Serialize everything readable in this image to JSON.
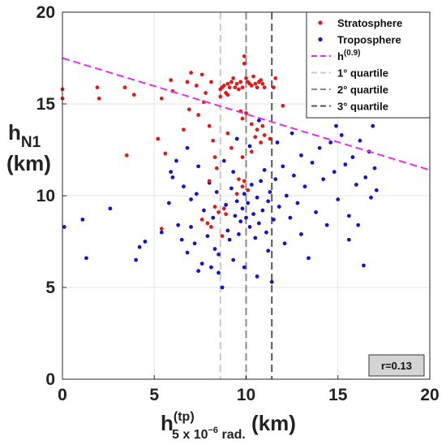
{
  "chart_data": {
    "type": "scatter",
    "xlim": [
      0,
      20
    ],
    "ylim": [
      0,
      20
    ],
    "xticks": [
      "0",
      "5",
      "10",
      "15",
      "20"
    ],
    "yticks": [
      "0",
      "5",
      "10",
      "15",
      "20"
    ],
    "ylabel": {
      "main": "h",
      "sub": "N1",
      "unit": "(km)"
    },
    "xlabel": {
      "main": "h",
      "sup": "(tp)",
      "sub": "5 x 10",
      "sub_sup": "−6",
      "sub_end": " rad.",
      "unit": " (km)"
    },
    "grid": true,
    "legend_position": "top-right",
    "legend": [
      {
        "label": "Stratosphere",
        "sup": "",
        "kind": "dot",
        "color": "#e01b1b"
      },
      {
        "label": "Troposphere",
        "sup": "",
        "kind": "dot",
        "color": "#1414cc"
      },
      {
        "label": "h",
        "sup": "(0.9)",
        "kind": "dash",
        "color": "#e62ee6"
      },
      {
        "label": "1° quartile",
        "sup": "",
        "kind": "dash",
        "color": "#c8c8c8"
      },
      {
        "label": "2° quartile",
        "sup": "",
        "kind": "dash",
        "color": "#8a8a8a"
      },
      {
        "label": "3° quartile",
        "sup": "",
        "kind": "dash",
        "color": "#555555"
      }
    ],
    "annotation": "r=0.13",
    "quantile_line": {
      "name": "h",
      "sup": "(0.9)",
      "x": [
        0,
        20
      ],
      "y": [
        17.5,
        11.4
      ],
      "color": "#e62ee6"
    },
    "quartiles": [
      {
        "name": "1° quartile",
        "x": 8.6,
        "color": "#c8c8c8"
      },
      {
        "name": "2° quartile",
        "x": 10.0,
        "color": "#8a8a8a"
      },
      {
        "name": "3° quartile",
        "x": 11.4,
        "color": "#555555"
      }
    ],
    "series": [
      {
        "name": "Stratosphere",
        "color": "#e01b1b",
        "points": [
          [
            0.0,
            15.8
          ],
          [
            0.0,
            15.3
          ],
          [
            1.9,
            15.9
          ],
          [
            2.0,
            15.3
          ],
          [
            3.4,
            15.9
          ],
          [
            3.9,
            15.5
          ],
          [
            3.5,
            12.2
          ],
          [
            5.4,
            15.3
          ],
          [
            5.2,
            13.1
          ],
          [
            5.9,
            16.3
          ],
          [
            6.0,
            15.7
          ],
          [
            5.6,
            12.3
          ],
          [
            6.8,
            16.2
          ],
          [
            7.0,
            16.7
          ],
          [
            7.3,
            16.0
          ],
          [
            7.6,
            16.6
          ],
          [
            7.8,
            15.6
          ],
          [
            8.1,
            16.2
          ],
          [
            6.9,
            14.7
          ],
          [
            7.4,
            14.4
          ],
          [
            6.6,
            13.6
          ],
          [
            8.0,
            13.8
          ],
          [
            8.2,
            13.0
          ],
          [
            8.3,
            12.1
          ],
          [
            8.4,
            11.5
          ],
          [
            8.0,
            10.8
          ],
          [
            8.6,
            15.8
          ],
          [
            8.6,
            15.4
          ],
          [
            8.7,
            15.9
          ],
          [
            8.8,
            16.0
          ],
          [
            8.9,
            15.6
          ],
          [
            9.0,
            16.1
          ],
          [
            9.0,
            15.5
          ],
          [
            9.1,
            15.9
          ],
          [
            9.2,
            16.2
          ],
          [
            9.3,
            16.4
          ],
          [
            9.4,
            15.9
          ],
          [
            9.5,
            16.1
          ],
          [
            9.6,
            15.8
          ],
          [
            9.7,
            16.2
          ],
          [
            9.8,
            15.9
          ],
          [
            9.9,
            17.6
          ],
          [
            9.9,
            17.2
          ],
          [
            10.0,
            16.4
          ],
          [
            10.1,
            16.2
          ],
          [
            10.2,
            16.1
          ],
          [
            10.3,
            16.0
          ],
          [
            10.4,
            16.5
          ],
          [
            10.5,
            16.1
          ],
          [
            10.6,
            15.9
          ],
          [
            10.7,
            16.2
          ],
          [
            10.8,
            16.3
          ],
          [
            10.9,
            16.1
          ],
          [
            11.0,
            15.9
          ],
          [
            9.7,
            14.6
          ],
          [
            9.8,
            14.2
          ],
          [
            10.0,
            14.5
          ],
          [
            10.3,
            13.9
          ],
          [
            10.6,
            13.6
          ],
          [
            10.9,
            13.8
          ],
          [
            10.5,
            13.2
          ],
          [
            10.8,
            12.9
          ],
          [
            11.0,
            13.3
          ],
          [
            11.6,
            16.4
          ],
          [
            11.5,
            15.9
          ],
          [
            14.0,
            19.1
          ],
          [
            10.3,
            12.4
          ],
          [
            9.8,
            12.1
          ],
          [
            9.6,
            10.9
          ],
          [
            9.8,
            10.5
          ],
          [
            10.1,
            10.3
          ],
          [
            9.5,
            10.1
          ],
          [
            9.9,
            10.8
          ],
          [
            8.8,
            9.3
          ],
          [
            8.5,
            9.1
          ],
          [
            8.3,
            9.4
          ],
          [
            8.9,
            9.0
          ],
          [
            7.6,
            8.7
          ],
          [
            7.9,
            8.5
          ],
          [
            8.1,
            8.3
          ],
          [
            8.7,
            7.8
          ],
          [
            5.4,
            8.2
          ],
          [
            9.0,
            13.4
          ],
          [
            12.0,
            14.9
          ],
          [
            13.6,
            15.4
          ],
          [
            11.3,
            13.1
          ],
          [
            9.2,
            12.6
          ],
          [
            7.7,
            15.1
          ]
        ]
      },
      {
        "name": "Troposphere",
        "color": "#1414cc",
        "points": [
          [
            0.1,
            8.3
          ],
          [
            1.1,
            8.7
          ],
          [
            1.3,
            6.6
          ],
          [
            2.6,
            9.3
          ],
          [
            4.0,
            6.5
          ],
          [
            4.5,
            7.5
          ],
          [
            4.2,
            7.2
          ],
          [
            5.4,
            8.0
          ],
          [
            5.8,
            9.6
          ],
          [
            6.0,
            11.0
          ],
          [
            6.3,
            8.4
          ],
          [
            6.5,
            7.6
          ],
          [
            6.8,
            6.9
          ],
          [
            7.0,
            8.3
          ],
          [
            7.2,
            7.4
          ],
          [
            7.4,
            5.9
          ],
          [
            7.6,
            6.3
          ],
          [
            7.7,
            9.2
          ],
          [
            7.9,
            7.8
          ],
          [
            7.3,
            10.1
          ],
          [
            7.0,
            9.8
          ],
          [
            6.6,
            10.5
          ],
          [
            6.2,
            11.9
          ],
          [
            7.4,
            11.6
          ],
          [
            8.0,
            10.7
          ],
          [
            8.2,
            8.8
          ],
          [
            8.3,
            7.1
          ],
          [
            8.5,
            6.8
          ],
          [
            8.5,
            5.8
          ],
          [
            8.7,
            5.0
          ],
          [
            8.9,
            9.5
          ],
          [
            9.0,
            8.1
          ],
          [
            9.1,
            7.6
          ],
          [
            9.2,
            10.4
          ],
          [
            9.3,
            6.5
          ],
          [
            9.4,
            8.9
          ],
          [
            9.5,
            9.7
          ],
          [
            9.6,
            7.9
          ],
          [
            9.7,
            8.6
          ],
          [
            9.8,
            9.3
          ],
          [
            9.9,
            10.1
          ],
          [
            10.0,
            8.8
          ],
          [
            10.1,
            9.6
          ],
          [
            10.2,
            8.3
          ],
          [
            10.3,
            10.6
          ],
          [
            10.4,
            9.0
          ],
          [
            10.5,
            7.7
          ],
          [
            10.6,
            9.9
          ],
          [
            10.7,
            8.5
          ],
          [
            10.8,
            10.8
          ],
          [
            10.9,
            9.2
          ],
          [
            11.0,
            11.4
          ],
          [
            11.1,
            8.0
          ],
          [
            11.2,
            9.7
          ],
          [
            11.3,
            10.2
          ],
          [
            11.4,
            5.3
          ],
          [
            11.5,
            8.7
          ],
          [
            11.6,
            10.9
          ],
          [
            11.8,
            9.4
          ],
          [
            12.0,
            11.6
          ],
          [
            12.2,
            10.0
          ],
          [
            12.4,
            8.8
          ],
          [
            12.6,
            11.1
          ],
          [
            12.8,
            9.6
          ],
          [
            13.0,
            12.2
          ],
          [
            13.2,
            10.5
          ],
          [
            13.4,
            6.6
          ],
          [
            13.6,
            11.8
          ],
          [
            13.8,
            9.1
          ],
          [
            14.0,
            12.6
          ],
          [
            14.2,
            10.9
          ],
          [
            14.4,
            8.4
          ],
          [
            14.6,
            12.9
          ],
          [
            14.8,
            11.3
          ],
          [
            15.0,
            9.8
          ],
          [
            15.2,
            13.3
          ],
          [
            15.4,
            11.7
          ],
          [
            15.6,
            8.9
          ],
          [
            15.8,
            12.1
          ],
          [
            16.0,
            10.6
          ],
          [
            16.2,
            13.0
          ],
          [
            16.4,
            6.2
          ],
          [
            16.5,
            11.0
          ],
          [
            16.7,
            12.4
          ],
          [
            16.8,
            9.9
          ],
          [
            16.9,
            13.8
          ],
          [
            17.0,
            11.5
          ],
          [
            17.1,
            10.3
          ],
          [
            15.6,
            7.6
          ],
          [
            16.1,
            8.4
          ],
          [
            14.9,
            13.8
          ],
          [
            9.5,
            13.1
          ],
          [
            10.2,
            12.7
          ],
          [
            8.8,
            11.9
          ],
          [
            11.7,
            12.9
          ],
          [
            12.5,
            13.4
          ],
          [
            10.7,
            14.1
          ],
          [
            9.3,
            11.3
          ],
          [
            8.4,
            10.2
          ],
          [
            10.6,
            5.6
          ],
          [
            9.9,
            6.1
          ],
          [
            8.1,
            6.1
          ],
          [
            11.2,
            7.0
          ],
          [
            12.1,
            7.4
          ],
          [
            13.0,
            7.9
          ],
          [
            6.8,
            12.6
          ],
          [
            5.9,
            11.3
          ]
        ]
      }
    ]
  }
}
